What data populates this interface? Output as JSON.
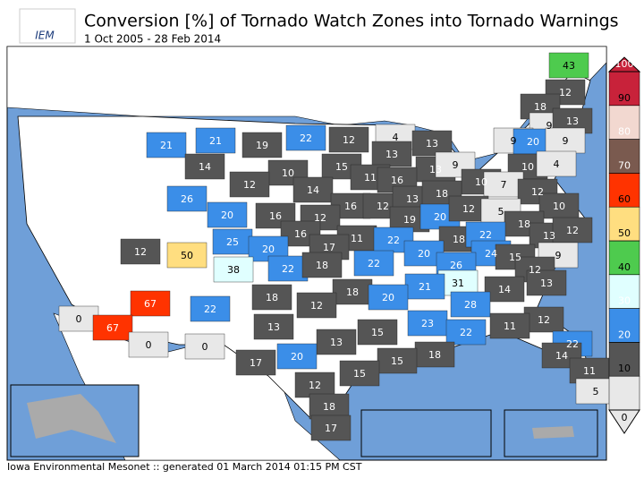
{
  "header": {
    "logo": "IEM",
    "title": "Conversion [%] of Tornado Watch Zones into Tornado Warnings",
    "subtitle": "1 Oct 2005 - 28 Feb 2014"
  },
  "legend": {
    "ticks": [
      0,
      10,
      20,
      30,
      40,
      50,
      60,
      70,
      80,
      90,
      100
    ],
    "colors": [
      "#e8e8e8",
      "#555555",
      "#3b8ee8",
      "#e0ffff",
      "#4ecb4e",
      "#ffde80",
      "#ff3300",
      "#7a5a4f",
      "#f2d8d0",
      "#c8223a"
    ]
  },
  "regions": {
    "values": [
      43,
      12,
      18,
      9,
      13,
      9,
      20,
      9,
      21,
      21,
      19,
      22,
      12,
      4,
      13,
      14,
      10,
      15,
      13,
      13,
      9,
      10,
      4,
      12,
      14,
      11,
      16,
      10,
      7,
      26,
      20,
      16,
      16,
      12,
      13,
      18,
      12,
      10,
      12,
      19,
      20,
      12,
      5,
      18,
      12,
      50,
      25,
      16,
      11,
      22,
      18,
      22,
      13,
      12,
      20,
      17,
      20,
      24,
      15,
      9,
      38,
      22,
      18,
      22,
      26,
      12,
      13,
      31,
      21,
      18,
      20,
      14,
      67,
      18,
      12,
      28,
      22,
      0,
      67,
      13,
      12,
      23,
      11,
      15,
      22,
      0,
      0,
      13,
      22,
      18,
      15,
      17,
      20,
      14,
      15,
      11,
      12,
      5,
      18,
      17
    ]
  },
  "footer": "Iowa Environmental Mesonet :: generated 01 March 2014 01:15 PM CST"
}
